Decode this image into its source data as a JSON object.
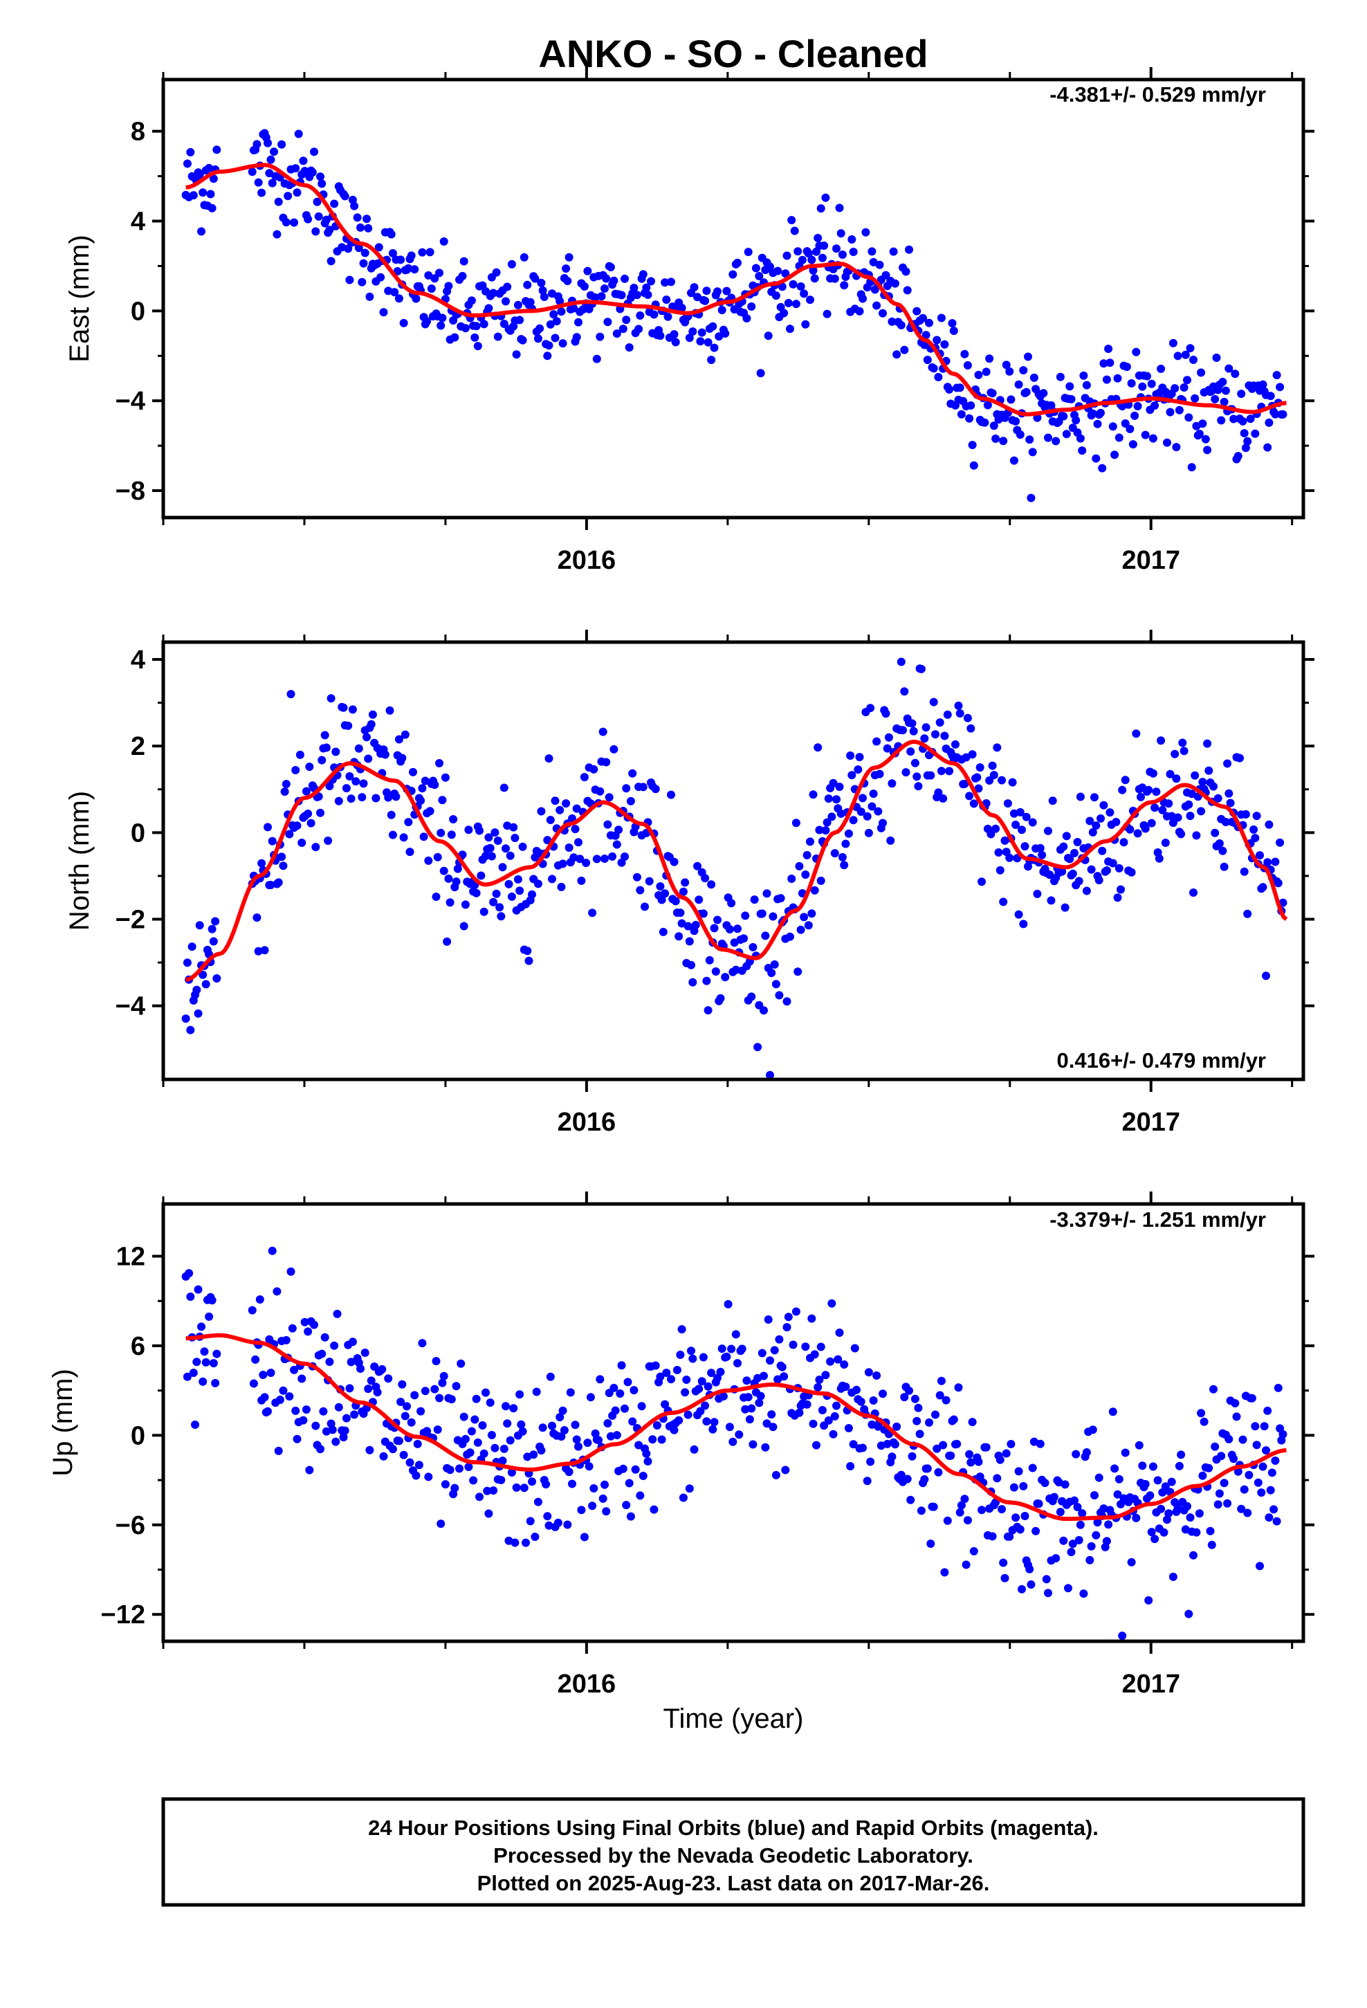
{
  "title": "ANKO  - SO - Cleaned",
  "colors": {
    "points": "#0000ff",
    "fit": "#ff0000",
    "frame": "#000000"
  },
  "xlabel": "Time (year)",
  "footer": {
    "line1": "24 Hour Positions Using Final Orbits (blue) and Rapid Orbits (magenta).",
    "line2": "Processed by the Nevada Geodetic Laboratory.",
    "line3": "Plotted on 2025-Aug-23. Last data on 2017-Mar-26."
  },
  "chart_data": [
    {
      "type": "scatter",
      "component": "east",
      "ylabel": "East (mm)",
      "rate_label": "-4.381+/- 0.529 mm/yr",
      "xlim": [
        2015.25,
        2017.27
      ],
      "ylim": [
        -9.2,
        10.3
      ],
      "yticks": [
        -8,
        -4,
        0,
        4,
        8
      ],
      "xtick_labels": [
        "2016",
        "2017"
      ],
      "fit_curve": {
        "x": [
          2015.29,
          2015.35,
          2015.43,
          2015.5,
          2015.6,
          2015.7,
          2015.8,
          2015.9,
          2016.0,
          2016.1,
          2016.18,
          2016.25,
          2016.33,
          2016.4,
          2016.45,
          2016.5,
          2016.55,
          2016.6,
          2016.65,
          2016.7,
          2016.78,
          2016.85,
          2016.92,
          2017.0,
          2017.1,
          2017.18,
          2017.24
        ],
        "y": [
          5.5,
          6.2,
          6.5,
          5.6,
          3.0,
          0.8,
          -0.2,
          0.0,
          0.4,
          0.2,
          -0.1,
          0.4,
          1.2,
          2.0,
          2.1,
          1.5,
          0.3,
          -1.3,
          -2.8,
          -3.9,
          -4.6,
          -4.4,
          -4.1,
          -3.9,
          -4.2,
          -4.5,
          -4.1
        ]
      },
      "noise_sd": 1.1
    },
    {
      "type": "scatter",
      "component": "north",
      "ylabel": "North (mm)",
      "rate_label": "0.416+/- 0.479 mm/yr",
      "xlim": [
        2015.25,
        2017.27
      ],
      "ylim": [
        -5.7,
        4.4
      ],
      "yticks": [
        -4,
        -2,
        0,
        2,
        4
      ],
      "xtick_labels": [
        "2016",
        "2017"
      ],
      "fit_curve": {
        "x": [
          2015.29,
          2015.35,
          2015.42,
          2015.5,
          2015.58,
          2015.66,
          2015.74,
          2015.82,
          2015.9,
          2015.97,
          2016.03,
          2016.1,
          2016.17,
          2016.24,
          2016.3,
          2016.37,
          2016.44,
          2016.51,
          2016.58,
          2016.65,
          2016.72,
          2016.78,
          2016.85,
          2016.92,
          2017.0,
          2017.06,
          2017.13,
          2017.2,
          2017.24
        ],
        "y": [
          -3.4,
          -2.8,
          -1.0,
          0.8,
          1.6,
          1.2,
          -0.2,
          -1.2,
          -0.8,
          0.2,
          0.7,
          0.2,
          -1.5,
          -2.7,
          -2.9,
          -1.8,
          0.0,
          1.5,
          2.1,
          1.6,
          0.4,
          -0.6,
          -0.8,
          -0.2,
          0.7,
          1.1,
          0.6,
          -0.8,
          -2.0
        ]
      },
      "noise_sd": 0.85
    },
    {
      "type": "scatter",
      "component": "up",
      "ylabel": "Up (mm)",
      "rate_label": "-3.379+/- 1.251 mm/yr",
      "xlim": [
        2015.25,
        2017.27
      ],
      "ylim": [
        -13.8,
        15.5
      ],
      "yticks": [
        -12,
        -6,
        0,
        6,
        12
      ],
      "xtick_labels": [
        "2016",
        "2017"
      ],
      "fit_curve": {
        "x": [
          2015.29,
          2015.35,
          2015.42,
          2015.5,
          2015.6,
          2015.7,
          2015.8,
          2015.9,
          2015.97,
          2016.05,
          2016.15,
          2016.25,
          2016.33,
          2016.42,
          2016.5,
          2016.58,
          2016.66,
          2016.75,
          2016.85,
          2016.93,
          2017.0,
          2017.08,
          2017.16,
          2017.24
        ],
        "y": [
          6.5,
          6.7,
          6.2,
          4.8,
          2.2,
          -0.1,
          -1.8,
          -2.3,
          -1.9,
          -0.6,
          1.5,
          3.0,
          3.4,
          2.8,
          1.3,
          -0.6,
          -2.6,
          -4.5,
          -5.6,
          -5.5,
          -4.6,
          -3.4,
          -2.1,
          -1.0
        ]
      },
      "noise_sd": 2.7
    }
  ]
}
